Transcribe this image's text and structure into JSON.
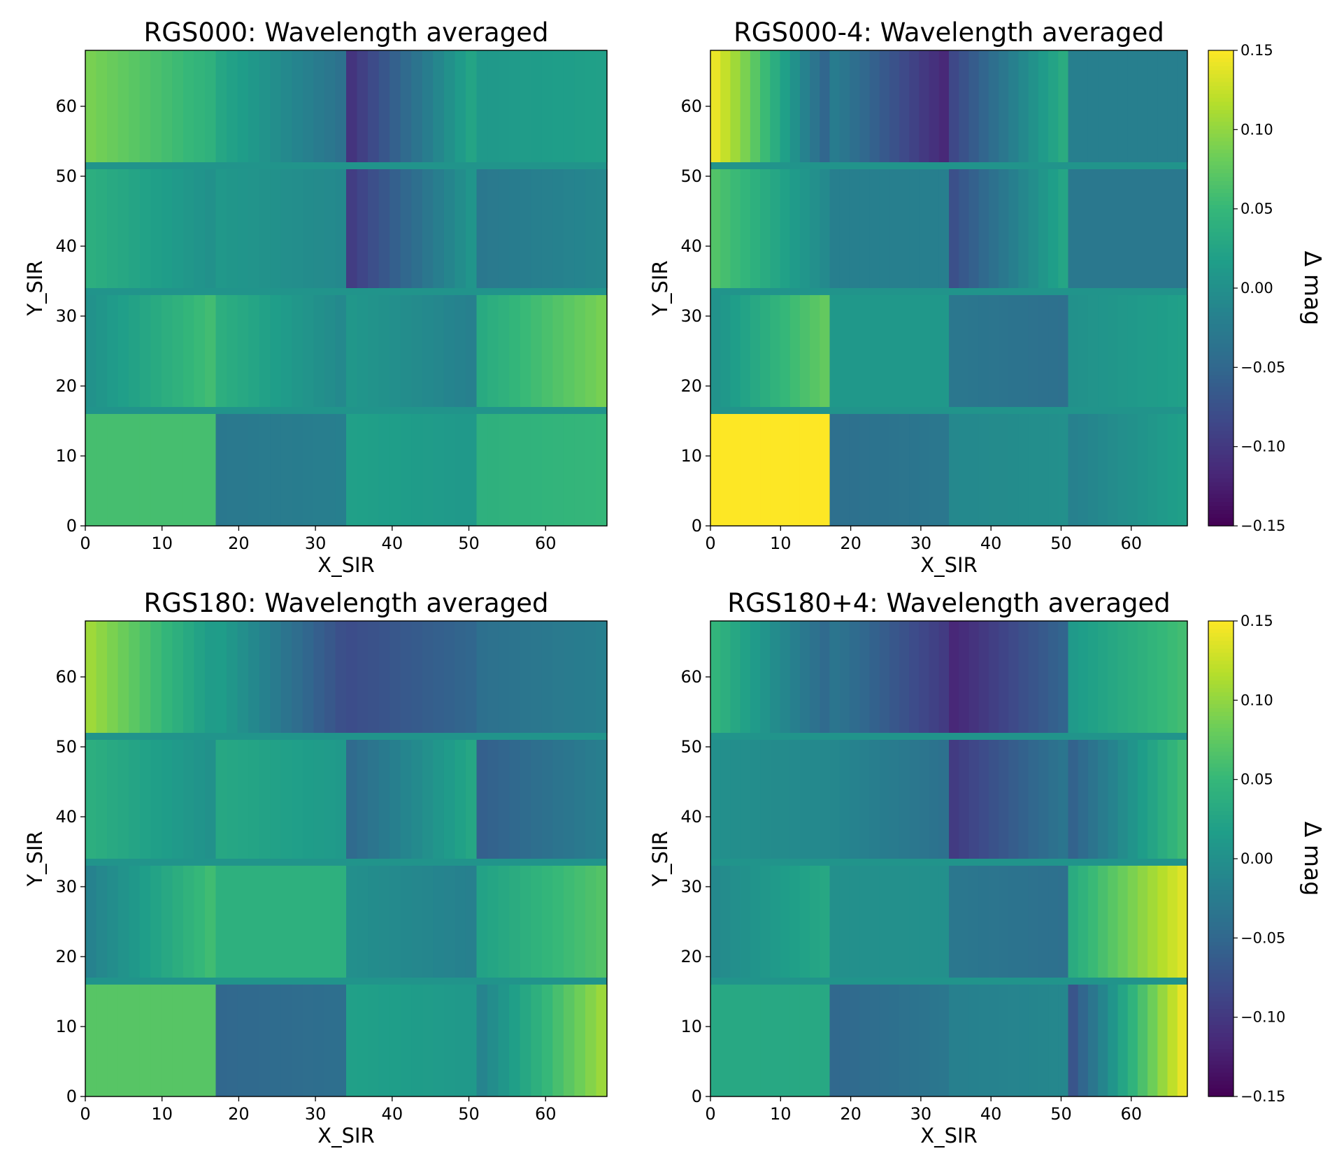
{
  "figure": {
    "colormap_name": "viridis",
    "colormap_stops": [
      "#440154",
      "#482878",
      "#3e4989",
      "#31688e",
      "#26828e",
      "#1f9e89",
      "#35b779",
      "#6ece58",
      "#b5de2b",
      "#fde725"
    ]
  },
  "chart_data": [
    {
      "type": "heatmap",
      "title": "RGS000: Wavelength averaged",
      "xlabel": "X_SIR",
      "ylabel": "Y_SIR",
      "xlim": [
        0,
        68
      ],
      "ylim": [
        0,
        68
      ],
      "xticks": [
        "0",
        "10",
        "20",
        "30",
        "40",
        "50",
        "60"
      ],
      "yticks": [
        "0",
        "10",
        "20",
        "30",
        "40",
        "50",
        "60"
      ],
      "grid": false,
      "colorbar": null,
      "cell_values_mag": [
        {
          "row": "Y 52-68",
          "cells": [
            [
              0.09,
              0.04
            ],
            [
              0.03,
              -0.04
            ],
            [
              -0.11,
              0.03
            ],
            [
              0.01,
              0.02
            ]
          ]
        },
        {
          "row": "Y 34-51",
          "cells": [
            [
              0.04,
              0.0
            ],
            [
              0.01,
              -0.01
            ],
            [
              -0.1,
              0.01
            ],
            [
              -0.03,
              -0.01
            ]
          ]
        },
        {
          "row": "Y 17-33",
          "cells": [
            [
              0.0,
              0.06
            ],
            [
              0.04,
              -0.01
            ],
            [
              0.01,
              -0.02
            ],
            [
              0.03,
              0.09
            ]
          ]
        },
        {
          "row": "Y 0-16",
          "cells": [
            [
              0.06,
              0.06
            ],
            [
              -0.03,
              -0.02
            ],
            [
              0.02,
              0.01
            ],
            [
              0.04,
              0.05
            ]
          ]
        }
      ]
    },
    {
      "type": "heatmap",
      "title": "RGS000-4: Wavelength averaged",
      "xlabel": "X_SIR",
      "ylabel": "Y_SIR",
      "xlim": [
        0,
        68
      ],
      "ylim": [
        0,
        68
      ],
      "xticks": [
        "0",
        "10",
        "20",
        "30",
        "40",
        "50",
        "60"
      ],
      "yticks": [
        "0",
        "10",
        "20",
        "30",
        "40",
        "50",
        "60"
      ],
      "grid": false,
      "colorbar": {
        "label": "Δ mag",
        "ticks": [
          "0.15",
          "0.10",
          "0.05",
          "0.00",
          "−0.05",
          "−0.10",
          "−0.15"
        ],
        "vmin": -0.15,
        "vmax": 0.15
      },
      "cell_values_mag": [
        {
          "row": "Y 52-68",
          "cells": [
            [
              0.15,
              -0.06
            ],
            [
              -0.02,
              -0.12
            ],
            [
              -0.09,
              0.04
            ],
            [
              -0.02,
              -0.02
            ]
          ]
        },
        {
          "row": "Y 34-51",
          "cells": [
            [
              0.07,
              -0.01
            ],
            [
              -0.02,
              -0.02
            ],
            [
              -0.08,
              0.03
            ],
            [
              -0.03,
              -0.03
            ]
          ]
        },
        {
          "row": "Y 17-33",
          "cells": [
            [
              0.0,
              0.08
            ],
            [
              0.01,
              0.01
            ],
            [
              -0.03,
              -0.04
            ],
            [
              0.0,
              0.02
            ]
          ]
        },
        {
          "row": "Y 0-16",
          "cells": [
            [
              0.15,
              0.15
            ],
            [
              -0.04,
              -0.03
            ],
            [
              -0.01,
              0.0
            ],
            [
              -0.02,
              0.02
            ]
          ]
        }
      ]
    },
    {
      "type": "heatmap",
      "title": "RGS180: Wavelength averaged",
      "xlabel": "X_SIR",
      "ylabel": "Y_SIR",
      "xlim": [
        0,
        68
      ],
      "ylim": [
        0,
        68
      ],
      "xticks": [
        "0",
        "10",
        "20",
        "30",
        "40",
        "50",
        "60"
      ],
      "yticks": [
        "0",
        "10",
        "20",
        "30",
        "40",
        "50",
        "60"
      ],
      "grid": false,
      "colorbar": null,
      "cell_values_mag": [
        {
          "row": "Y 52-68",
          "cells": [
            [
              0.11,
              0.01
            ],
            [
              0.02,
              -0.08
            ],
            [
              -0.08,
              -0.05
            ],
            [
              -0.04,
              -0.02
            ]
          ]
        },
        {
          "row": "Y 34-51",
          "cells": [
            [
              0.04,
              0.0
            ],
            [
              0.03,
              0.01
            ],
            [
              -0.05,
              0.03
            ],
            [
              -0.06,
              -0.02
            ]
          ]
        },
        {
          "row": "Y 17-33",
          "cells": [
            [
              -0.02,
              0.06
            ],
            [
              0.04,
              0.04
            ],
            [
              0.0,
              -0.02
            ],
            [
              0.02,
              0.07
            ]
          ]
        },
        {
          "row": "Y 0-16",
          "cells": [
            [
              0.07,
              0.07
            ],
            [
              -0.05,
              -0.04
            ],
            [
              0.02,
              0.01
            ],
            [
              -0.02,
              0.11
            ]
          ]
        }
      ]
    },
    {
      "type": "heatmap",
      "title": "RGS180+4: Wavelength averaged",
      "xlabel": "X_SIR",
      "ylabel": "Y_SIR",
      "xlim": [
        0,
        68
      ],
      "ylim": [
        0,
        68
      ],
      "xticks": [
        "0",
        "10",
        "20",
        "30",
        "40",
        "50",
        "60"
      ],
      "yticks": [
        "0",
        "10",
        "20",
        "30",
        "40",
        "50",
        "60"
      ],
      "grid": false,
      "colorbar": {
        "label": "Δ mag",
        "ticks": [
          "0.15",
          "0.10",
          "0.05",
          "0.00",
          "−0.05",
          "−0.10",
          "−0.15"
        ],
        "vmin": -0.15,
        "vmax": 0.15
      },
      "cell_values_mag": [
        {
          "row": "Y 52-68",
          "cells": [
            [
              0.05,
              -0.05
            ],
            [
              -0.03,
              -0.1
            ],
            [
              -0.12,
              -0.05
            ],
            [
              0.01,
              0.06
            ]
          ]
        },
        {
          "row": "Y 34-51",
          "cells": [
            [
              0.0,
              -0.01
            ],
            [
              -0.01,
              -0.04
            ],
            [
              -0.1,
              -0.03
            ],
            [
              -0.06,
              0.06
            ]
          ]
        },
        {
          "row": "Y 17-33",
          "cells": [
            [
              -0.01,
              0.03
            ],
            [
              0.0,
              0.0
            ],
            [
              -0.03,
              -0.04
            ],
            [
              0.03,
              0.14
            ]
          ]
        },
        {
          "row": "Y 0-16",
          "cells": [
            [
              0.03,
              0.03
            ],
            [
              -0.05,
              -0.03
            ],
            [
              -0.02,
              -0.01
            ],
            [
              -0.08,
              0.15
            ]
          ]
        }
      ]
    }
  ]
}
